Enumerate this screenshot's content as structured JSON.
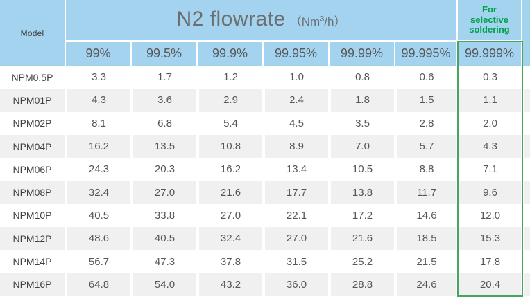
{
  "table": {
    "title_main": "N2 flowrate",
    "title_unit_pre": "（Nm",
    "title_unit_sup": "3",
    "title_unit_post": "/h）",
    "model_header": "Model",
    "selective_note_lines": [
      "For",
      "selective",
      "soldering"
    ],
    "purity_headers": [
      "99%",
      "99.5%",
      "99.9%",
      "99.95%",
      "99.99%",
      "99.995%",
      "99.999%"
    ],
    "rows": [
      {
        "model": "NPM0.5P",
        "values": [
          "3.3",
          "1.7",
          "1.2",
          "1.0",
          "0.8",
          "0.6",
          "0.3"
        ]
      },
      {
        "model": "NPM01P",
        "values": [
          "4.3",
          "3.6",
          "2.9",
          "2.4",
          "1.8",
          "1.5",
          "1.1"
        ]
      },
      {
        "model": "NPM02P",
        "values": [
          "8.1",
          "6.8",
          "5.4",
          "4.5",
          "3.5",
          "2.8",
          "2.0"
        ]
      },
      {
        "model": "NPM04P",
        "values": [
          "16.2",
          "13.5",
          "10.8",
          "8.9",
          "7.0",
          "5.7",
          "4.3"
        ]
      },
      {
        "model": "NPM06P",
        "values": [
          "24.3",
          "20.3",
          "16.2",
          "13.4",
          "10.5",
          "8.8",
          "7.1"
        ]
      },
      {
        "model": "NPM08P",
        "values": [
          "32.4",
          "27.0",
          "21.6",
          "17.7",
          "13.8",
          "11.7",
          "9.6"
        ]
      },
      {
        "model": "NPM10P",
        "values": [
          "40.5",
          "33.8",
          "27.0",
          "22.1",
          "17.2",
          "14.6",
          "12.0"
        ]
      },
      {
        "model": "NPM12P",
        "values": [
          "48.6",
          "40.5",
          "32.4",
          "27.0",
          "21.6",
          "18.5",
          "15.3"
        ]
      },
      {
        "model": "NPM14P",
        "values": [
          "56.7",
          "47.3",
          "37.8",
          "31.5",
          "25.2",
          "21.5",
          "17.8"
        ]
      },
      {
        "model": "NPM16P",
        "values": [
          "64.8",
          "54.0",
          "43.2",
          "36.0",
          "28.8",
          "24.6",
          "20.4"
        ]
      }
    ]
  },
  "colors": {
    "header_blue": "#a3d3ee",
    "title_text": "#6d6e70",
    "pct_text": "#57585a",
    "model_text": "#3f4040",
    "value_text": "#565656",
    "row_alt_gray": "#f0f0f1",
    "green_text": "#00a14b",
    "green_border": "#47a561"
  }
}
